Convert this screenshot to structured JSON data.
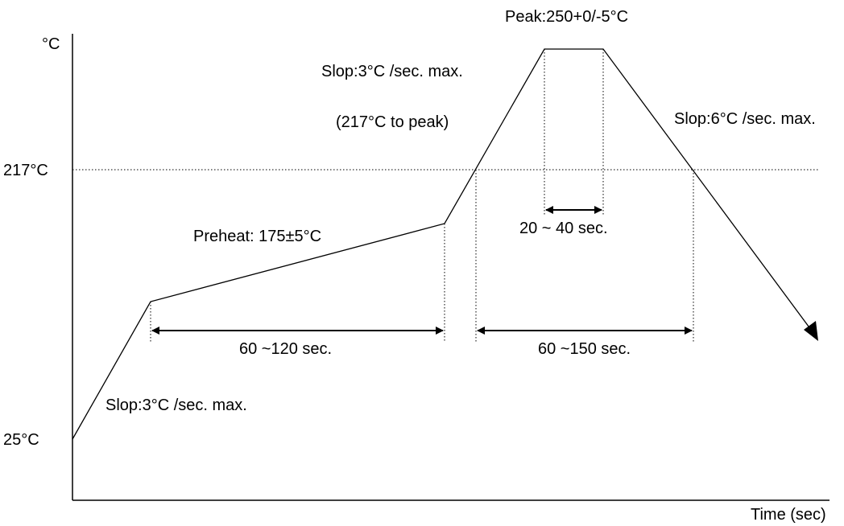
{
  "axes": {
    "y_unit": "°C",
    "x_label": "Time (sec)",
    "y_ticks": [
      "217°C",
      "25°C"
    ]
  },
  "labels": {
    "peak": "Peak:250+0/-5°C",
    "slope_to_peak": "Slop:3°C /sec. max.",
    "slope_to_peak_note": "(217°C to peak)",
    "slope_cool": "Slop:6°C /sec. max.",
    "preheat": "Preheat: 175±5°C",
    "slope_ramp": "Slop:3°C /sec. max."
  },
  "intervals": {
    "preheat_time": "60 ~120 sec.",
    "above_217": "60 ~150 sec.",
    "peak_time": "20 ~ 40 sec."
  }
}
